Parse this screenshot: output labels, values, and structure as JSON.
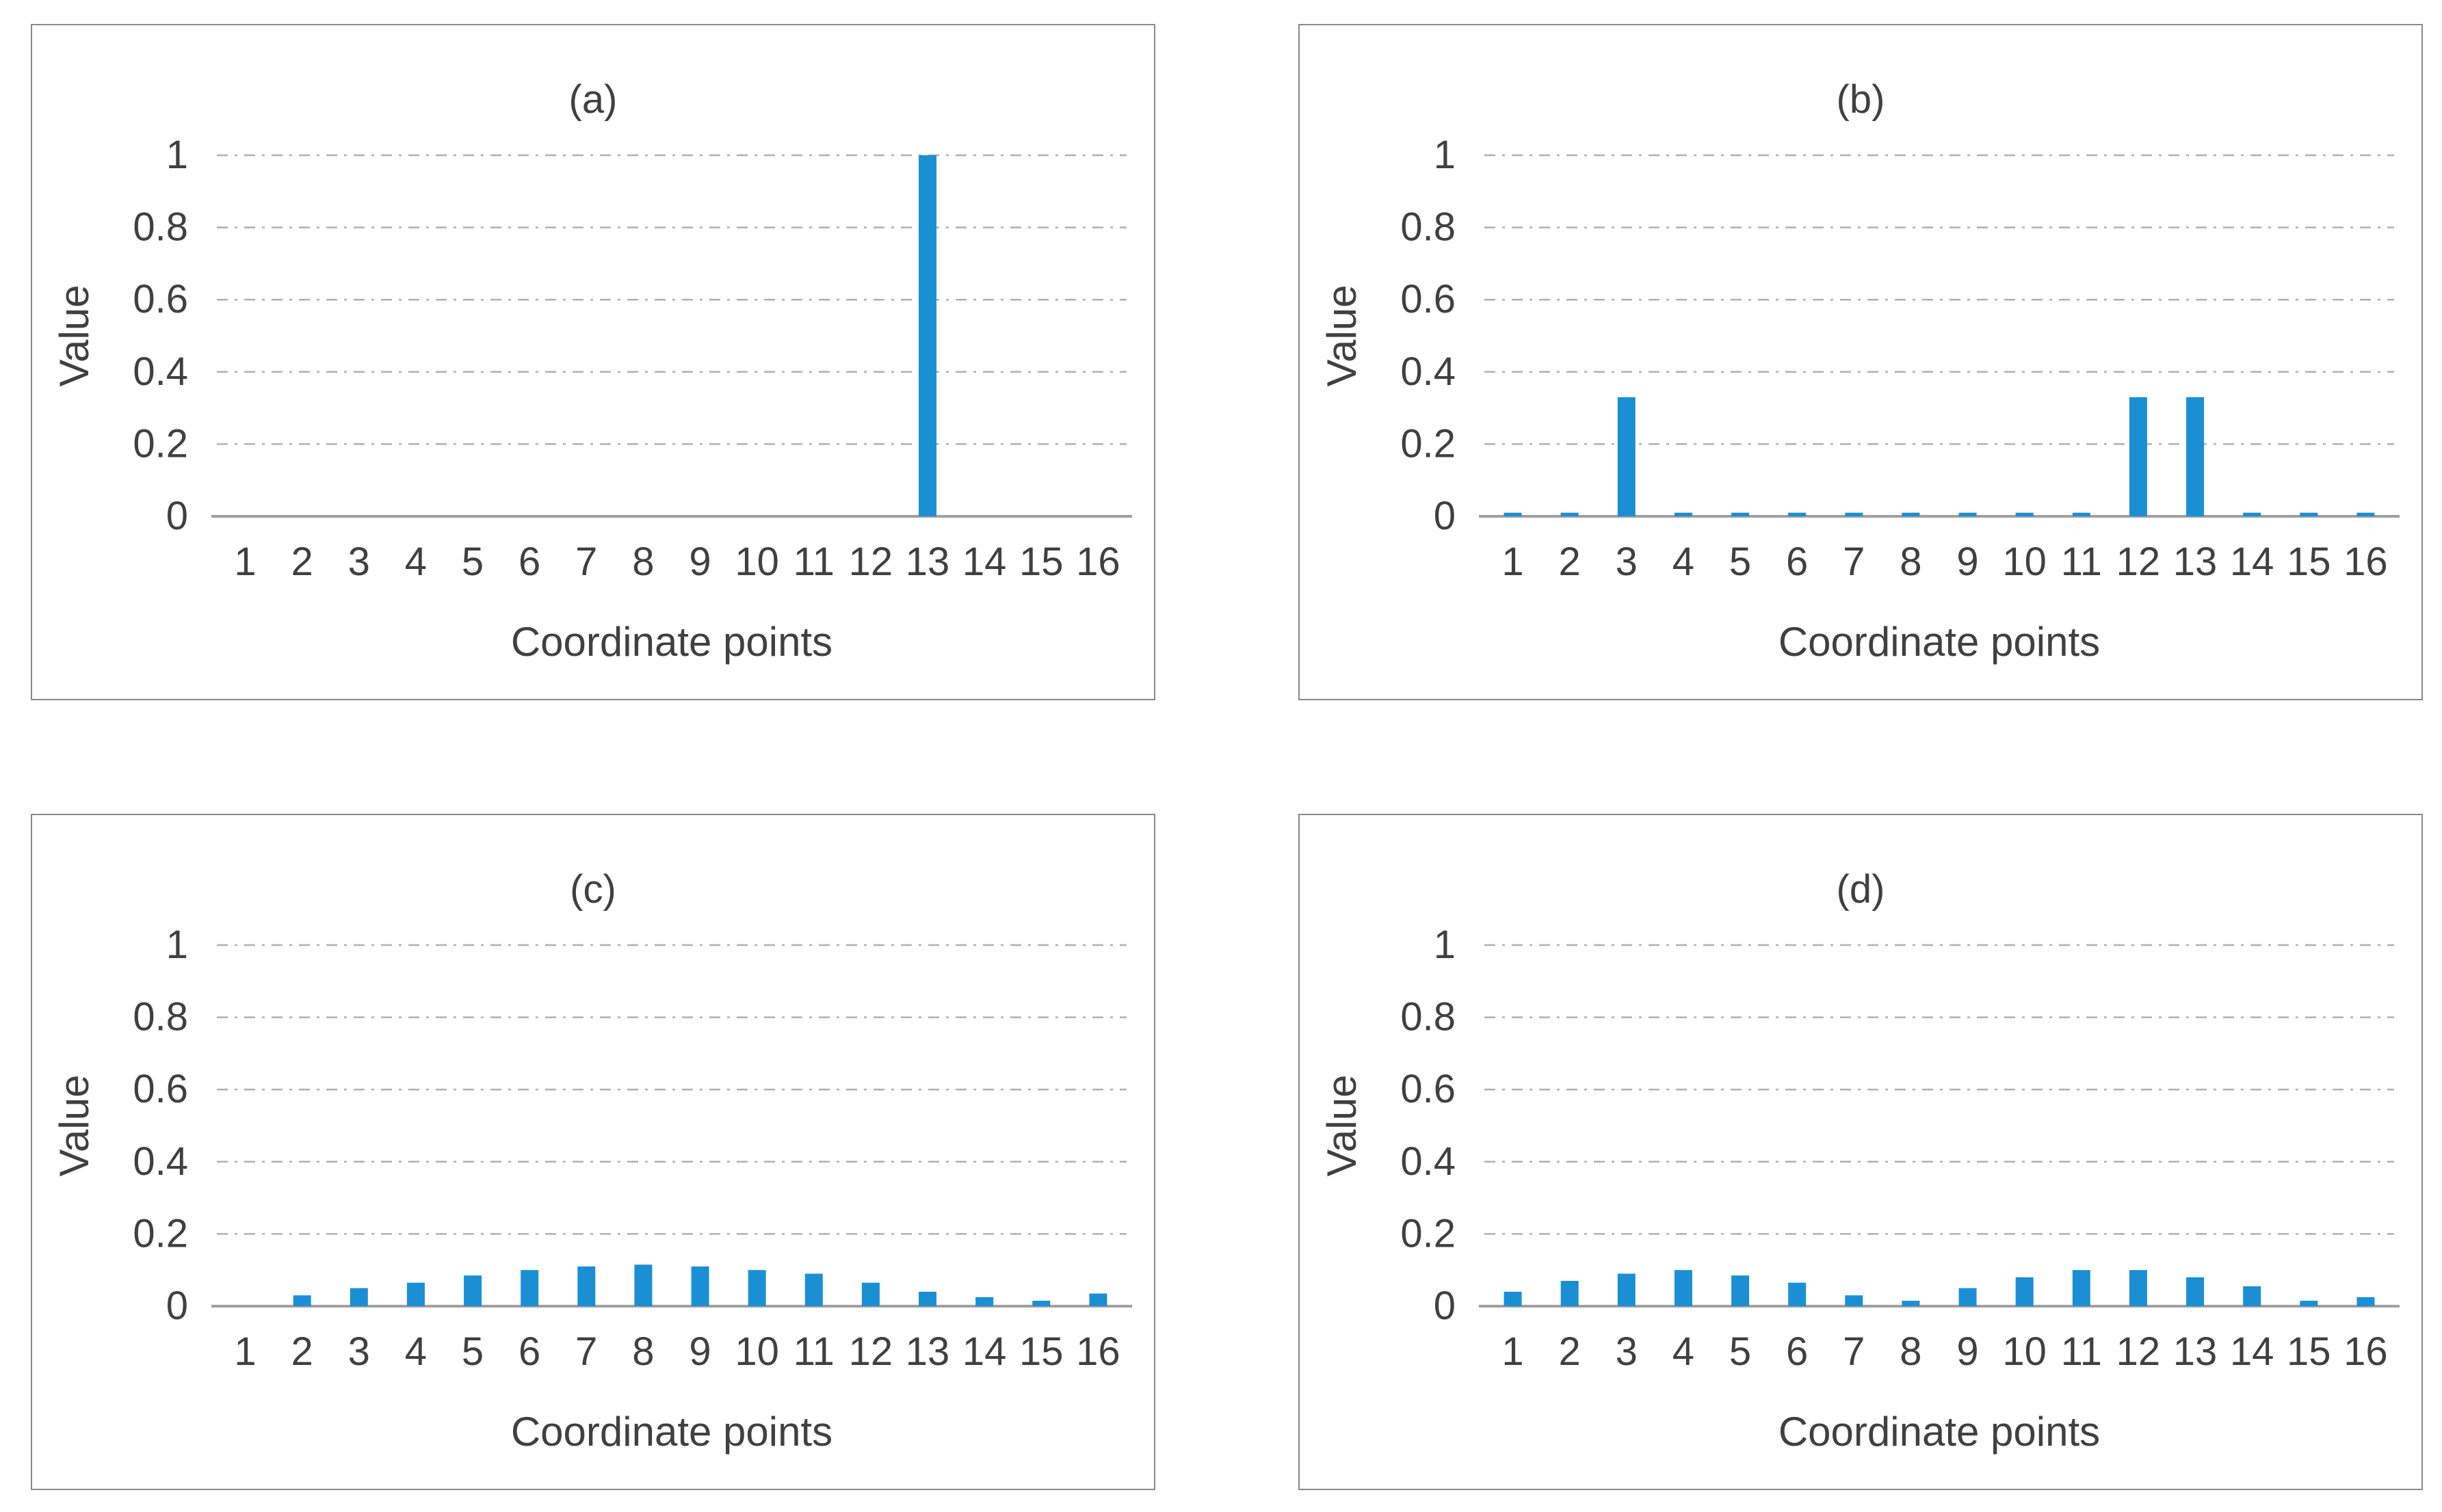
{
  "figure": {
    "background_color": "#ffffff",
    "bar_color": "#1b8fd4",
    "gridline_color": "#b0b0b0",
    "axis_line_color": "#a0a0a0",
    "text_color": "#404040",
    "panel_border_color": "#8a8a8a"
  },
  "chart_data": [
    {
      "type": "bar",
      "title": "(a)",
      "xlabel": "Coordinate points",
      "ylabel": "Value",
      "categories": [
        "1",
        "2",
        "3",
        "4",
        "5",
        "6",
        "7",
        "8",
        "9",
        "10",
        "11",
        "12",
        "13",
        "14",
        "15",
        "16"
      ],
      "values": [
        0,
        0,
        0,
        0,
        0,
        0,
        0,
        0,
        0,
        0,
        0,
        0,
        1,
        0,
        0,
        0
      ],
      "ylim": [
        0,
        1
      ],
      "yticks": [
        1,
        0.8,
        0.6,
        0.4,
        0.2,
        0
      ],
      "grid": "horizontal dash-dot",
      "legend": "none"
    },
    {
      "type": "bar",
      "title": "(b)",
      "xlabel": "Coordinate points",
      "ylabel": "Value",
      "categories": [
        "1",
        "2",
        "3",
        "4",
        "5",
        "6",
        "7",
        "8",
        "9",
        "10",
        "11",
        "12",
        "13",
        "14",
        "15",
        "16"
      ],
      "values": [
        0.01,
        0.01,
        0.33,
        0.01,
        0.01,
        0.01,
        0.01,
        0.01,
        0.01,
        0.01,
        0.01,
        0.33,
        0.33,
        0.01,
        0.01,
        0.01
      ],
      "ylim": [
        0,
        1
      ],
      "yticks": [
        1,
        0.8,
        0.6,
        0.4,
        0.2,
        0
      ],
      "grid": "horizontal dash-dot",
      "legend": "none"
    },
    {
      "type": "bar",
      "title": "(c)",
      "xlabel": "Coordinate points",
      "ylabel": "Value",
      "categories": [
        "1",
        "2",
        "3",
        "4",
        "5",
        "6",
        "7",
        "8",
        "9",
        "10",
        "11",
        "12",
        "13",
        "14",
        "15",
        "16"
      ],
      "values": [
        0,
        0.03,
        0.05,
        0.065,
        0.085,
        0.1,
        0.11,
        0.115,
        0.11,
        0.1,
        0.09,
        0.065,
        0.04,
        0.025,
        0.015,
        0.035
      ],
      "ylim": [
        0,
        1
      ],
      "yticks": [
        1,
        0.8,
        0.6,
        0.4,
        0.2,
        0
      ],
      "grid": "horizontal dash-dot",
      "legend": "none"
    },
    {
      "type": "bar",
      "title": "(d)",
      "xlabel": "Coordinate points",
      "ylabel": "Value",
      "categories": [
        "1",
        "2",
        "3",
        "4",
        "5",
        "6",
        "7",
        "8",
        "9",
        "10",
        "11",
        "12",
        "13",
        "14",
        "15",
        "16"
      ],
      "values": [
        0.04,
        0.07,
        0.09,
        0.1,
        0.085,
        0.065,
        0.03,
        0.015,
        0.05,
        0.08,
        0.1,
        0.1,
        0.08,
        0.055,
        0.015,
        0.025
      ],
      "ylim": [
        0,
        1
      ],
      "yticks": [
        1,
        0.8,
        0.6,
        0.4,
        0.2,
        0
      ],
      "grid": "horizontal dash-dot",
      "legend": "none"
    }
  ]
}
